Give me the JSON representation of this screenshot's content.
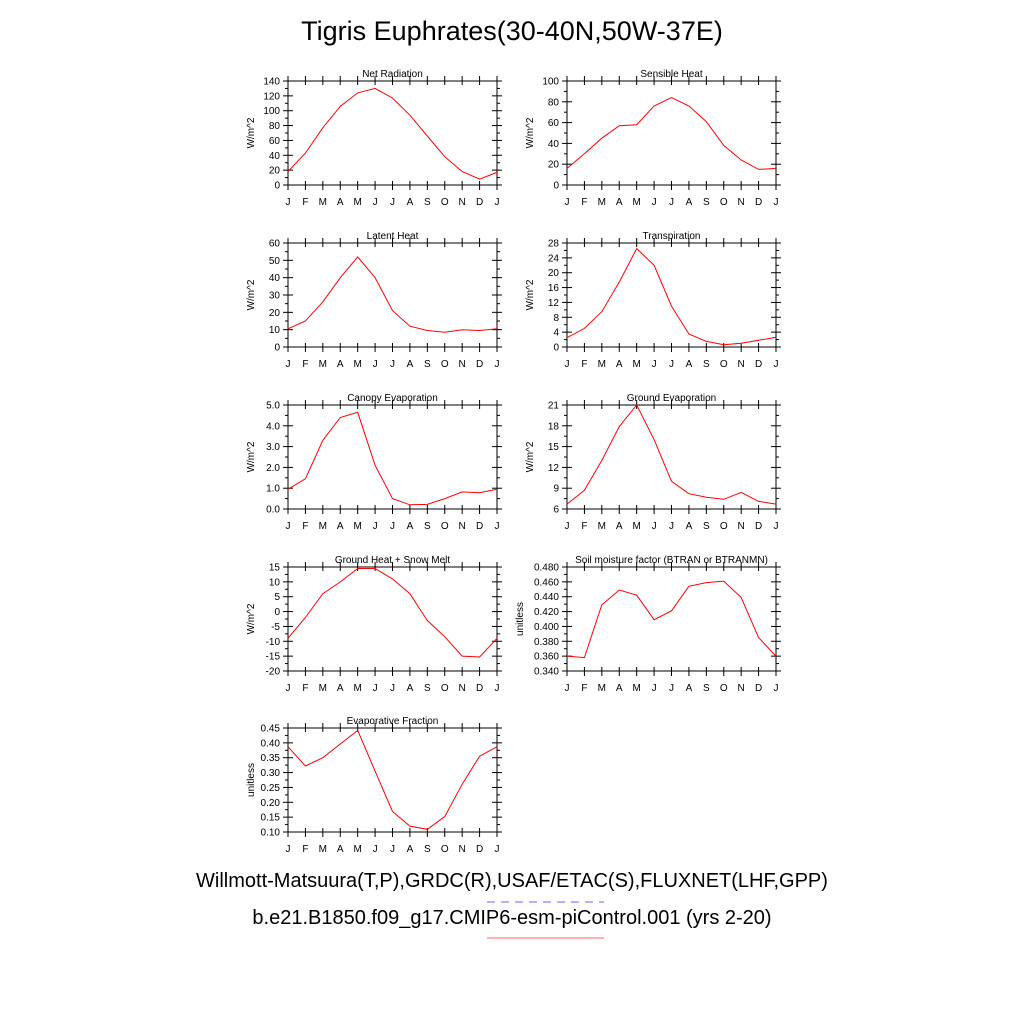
{
  "title": "Tigris Euphrates(30-40N,50W-37E)",
  "legend": {
    "line1": "Willmott-Matsuura(T,P),GRDC(R),USAF/ETAC(S),FLUXNET(LHF,GPP)",
    "line1_color": "#0000ff",
    "line2": "b.e21.B1850.f09_g17.CMIP6-esm-piControl.001 (yrs 2-20)",
    "line2_color": "#ff0000"
  },
  "chart_data": [
    {
      "type": "line",
      "title": "Net Radiation",
      "ylabel": "W/m^2",
      "x": [
        "J",
        "F",
        "M",
        "A",
        "M",
        "J",
        "J",
        "A",
        "S",
        "O",
        "N",
        "D",
        "J"
      ],
      "ylim": [
        0,
        140
      ],
      "yticks": [
        "0",
        "20",
        "40",
        "60",
        "80",
        "100",
        "120",
        "140"
      ],
      "series": [
        {
          "color": "#ff0000",
          "values": [
            18,
            43,
            77,
            106,
            124,
            130,
            117,
            94,
            66,
            38,
            18,
            8,
            17
          ]
        }
      ]
    },
    {
      "type": "line",
      "title": "Sensible Heat",
      "ylabel": "W/m^2",
      "x": [
        "J",
        "F",
        "M",
        "A",
        "M",
        "J",
        "J",
        "A",
        "S",
        "O",
        "N",
        "D",
        "J"
      ],
      "ylim": [
        0,
        100
      ],
      "yticks": [
        "0",
        "20",
        "40",
        "60",
        "80",
        "100"
      ],
      "series": [
        {
          "color": "#ff0000",
          "values": [
            16,
            30,
            45,
            57,
            58,
            76,
            84,
            76,
            61,
            38,
            24,
            15,
            16
          ]
        }
      ]
    },
    {
      "type": "line",
      "title": "Latent Heat",
      "ylabel": "W/m^2",
      "x": [
        "J",
        "F",
        "M",
        "A",
        "M",
        "J",
        "J",
        "A",
        "S",
        "O",
        "N",
        "D",
        "J"
      ],
      "ylim": [
        0,
        60
      ],
      "yticks": [
        "0",
        "10",
        "20",
        "30",
        "40",
        "50",
        "60"
      ],
      "series": [
        {
          "color": "#ff0000",
          "values": [
            10.5,
            15,
            26,
            40,
            52,
            40,
            21,
            12,
            9.5,
            8.5,
            10,
            9.5,
            10.5
          ]
        }
      ]
    },
    {
      "type": "line",
      "title": "Transpiration",
      "ylabel": "W/m^2",
      "x": [
        "J",
        "F",
        "M",
        "A",
        "M",
        "J",
        "J",
        "A",
        "S",
        "O",
        "N",
        "D",
        "J"
      ],
      "ylim": [
        0,
        28
      ],
      "yticks": [
        "0",
        "4",
        "8",
        "12",
        "16",
        "20",
        "24",
        "28"
      ],
      "series": [
        {
          "color": "#ff0000",
          "values": [
            2.5,
            5,
            9.5,
            17.5,
            26.5,
            22,
            11,
            3.5,
            1.5,
            0.6,
            1,
            1.8,
            2.6
          ]
        }
      ]
    },
    {
      "type": "line",
      "title": "Canopy Evaporation",
      "ylabel": "W/m^2",
      "x": [
        "J",
        "F",
        "M",
        "A",
        "M",
        "J",
        "J",
        "A",
        "S",
        "O",
        "N",
        "D",
        "J"
      ],
      "ylim": [
        0,
        5
      ],
      "yticks": [
        "0.0",
        "1.0",
        "2.0",
        "3.0",
        "4.0",
        "5.0"
      ],
      "series": [
        {
          "color": "#ff0000",
          "values": [
            0.95,
            1.45,
            3.3,
            4.4,
            4.65,
            2.1,
            0.5,
            0.2,
            0.22,
            0.5,
            0.82,
            0.78,
            0.95
          ]
        }
      ]
    },
    {
      "type": "line",
      "title": "Ground Evaporation",
      "ylabel": "W/m^2",
      "x": [
        "J",
        "F",
        "M",
        "A",
        "M",
        "J",
        "J",
        "A",
        "S",
        "O",
        "N",
        "D",
        "J"
      ],
      "ylim": [
        6,
        21
      ],
      "yticks": [
        "6",
        "9",
        "12",
        "15",
        "18",
        "21"
      ],
      "series": [
        {
          "color": "#ff0000",
          "values": [
            6.7,
            8.7,
            13,
            17.9,
            21,
            16,
            10,
            8.2,
            7.7,
            7.4,
            8.4,
            7.1,
            6.7
          ]
        }
      ]
    },
    {
      "type": "line",
      "title": "Ground Heat + Snow Melt",
      "ylabel": "W/m^2",
      "x": [
        "J",
        "F",
        "M",
        "A",
        "M",
        "J",
        "J",
        "A",
        "S",
        "O",
        "N",
        "D",
        "J"
      ],
      "ylim": [
        -20,
        15
      ],
      "yticks": [
        "-20",
        "-15",
        "-10",
        "-5",
        "0",
        "5",
        "10",
        "15"
      ],
      "series": [
        {
          "color": "#ff0000",
          "values": [
            -9,
            -2,
            6,
            10,
            14.5,
            14.5,
            11,
            6,
            -3,
            -8.5,
            -15,
            -15.3,
            -9
          ]
        }
      ]
    },
    {
      "type": "line",
      "title": "Soil moisture factor (BTRAN or BTRANMN)",
      "ylabel": "unitless",
      "x": [
        "J",
        "F",
        "M",
        "A",
        "M",
        "J",
        "J",
        "A",
        "S",
        "O",
        "N",
        "D",
        "J"
      ],
      "ylim": [
        0.34,
        0.48
      ],
      "yticks": [
        "0.340",
        "0.360",
        "0.380",
        "0.400",
        "0.420",
        "0.440",
        "0.460",
        "0.480"
      ],
      "series": [
        {
          "color": "#ff0000",
          "values": [
            0.36,
            0.358,
            0.429,
            0.449,
            0.442,
            0.409,
            0.421,
            0.454,
            0.459,
            0.461,
            0.439,
            0.385,
            0.36
          ]
        }
      ]
    },
    {
      "type": "line",
      "title": "Evaporative Fraction",
      "ylabel": "unitless",
      "x": [
        "J",
        "F",
        "M",
        "A",
        "M",
        "J",
        "J",
        "A",
        "S",
        "O",
        "N",
        "D",
        "J"
      ],
      "ylim": [
        0.1,
        0.45
      ],
      "yticks": [
        "0.10",
        "0.15",
        "0.20",
        "0.25",
        "0.30",
        "0.35",
        "0.40",
        "0.45"
      ],
      "series": [
        {
          "color": "#ff0000",
          "values": [
            0.387,
            0.322,
            0.35,
            0.396,
            0.442,
            0.305,
            0.169,
            0.12,
            0.109,
            0.152,
            0.261,
            0.355,
            0.387
          ]
        }
      ]
    }
  ]
}
